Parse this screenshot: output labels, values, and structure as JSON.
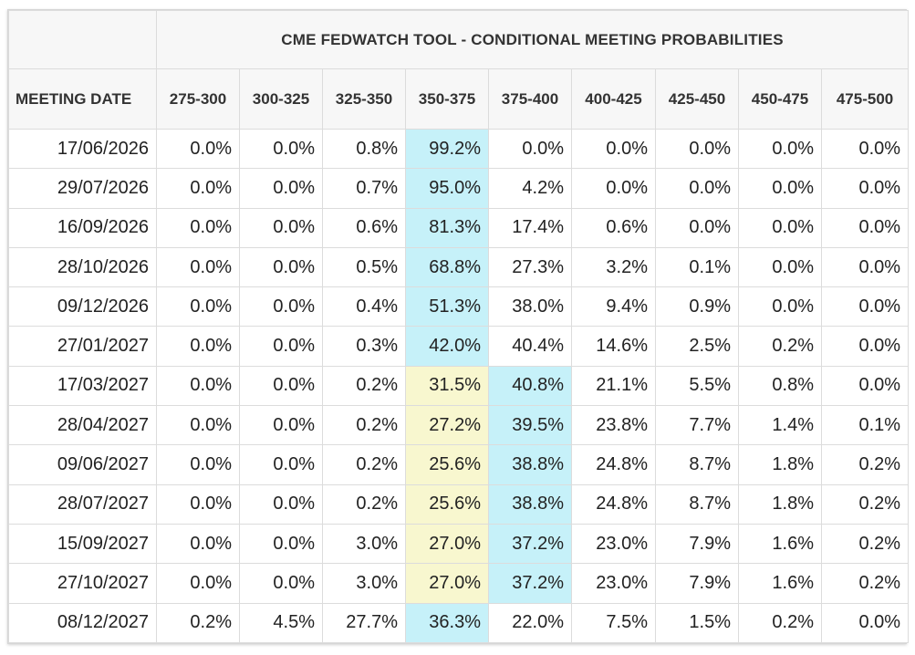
{
  "title": "CME FEDWATCH TOOL - CONDITIONAL MEETING PROBABILITIES",
  "date_header": "MEETING DATE",
  "columns": [
    "275-300",
    "300-325",
    "325-350",
    "350-375",
    "375-400",
    "400-425",
    "425-450",
    "450-475",
    "475-500"
  ],
  "colors": {
    "highlight_max": "#c6f1f9",
    "highlight_secondary": "#f8f7cf"
  },
  "rows": [
    {
      "date": "17/06/2026",
      "values": [
        "0.0%",
        "0.0%",
        "0.8%",
        "99.2%",
        "0.0%",
        "0.0%",
        "0.0%",
        "0.0%",
        "0.0%"
      ],
      "highlights": {
        "3": "blue"
      }
    },
    {
      "date": "29/07/2026",
      "values": [
        "0.0%",
        "0.0%",
        "0.7%",
        "95.0%",
        "4.2%",
        "0.0%",
        "0.0%",
        "0.0%",
        "0.0%"
      ],
      "highlights": {
        "3": "blue"
      }
    },
    {
      "date": "16/09/2026",
      "values": [
        "0.0%",
        "0.0%",
        "0.6%",
        "81.3%",
        "17.4%",
        "0.6%",
        "0.0%",
        "0.0%",
        "0.0%"
      ],
      "highlights": {
        "3": "blue"
      }
    },
    {
      "date": "28/10/2026",
      "values": [
        "0.0%",
        "0.0%",
        "0.5%",
        "68.8%",
        "27.3%",
        "3.2%",
        "0.1%",
        "0.0%",
        "0.0%"
      ],
      "highlights": {
        "3": "blue"
      }
    },
    {
      "date": "09/12/2026",
      "values": [
        "0.0%",
        "0.0%",
        "0.4%",
        "51.3%",
        "38.0%",
        "9.4%",
        "0.9%",
        "0.0%",
        "0.0%"
      ],
      "highlights": {
        "3": "blue"
      }
    },
    {
      "date": "27/01/2027",
      "values": [
        "0.0%",
        "0.0%",
        "0.3%",
        "42.0%",
        "40.4%",
        "14.6%",
        "2.5%",
        "0.2%",
        "0.0%"
      ],
      "highlights": {
        "3": "blue"
      }
    },
    {
      "date": "17/03/2027",
      "values": [
        "0.0%",
        "0.0%",
        "0.2%",
        "31.5%",
        "40.8%",
        "21.1%",
        "5.5%",
        "0.8%",
        "0.0%"
      ],
      "highlights": {
        "3": "yellow",
        "4": "blue"
      }
    },
    {
      "date": "28/04/2027",
      "values": [
        "0.0%",
        "0.0%",
        "0.2%",
        "27.2%",
        "39.5%",
        "23.8%",
        "7.7%",
        "1.4%",
        "0.1%"
      ],
      "highlights": {
        "3": "yellow",
        "4": "blue"
      }
    },
    {
      "date": "09/06/2027",
      "values": [
        "0.0%",
        "0.0%",
        "0.2%",
        "25.6%",
        "38.8%",
        "24.8%",
        "8.7%",
        "1.8%",
        "0.2%"
      ],
      "highlights": {
        "3": "yellow",
        "4": "blue"
      }
    },
    {
      "date": "28/07/2027",
      "values": [
        "0.0%",
        "0.0%",
        "0.2%",
        "25.6%",
        "38.8%",
        "24.8%",
        "8.7%",
        "1.8%",
        "0.2%"
      ],
      "highlights": {
        "3": "yellow",
        "4": "blue"
      }
    },
    {
      "date": "15/09/2027",
      "values": [
        "0.0%",
        "0.0%",
        "3.0%",
        "27.0%",
        "37.2%",
        "23.0%",
        "7.9%",
        "1.6%",
        "0.2%"
      ],
      "highlights": {
        "3": "yellow",
        "4": "blue"
      }
    },
    {
      "date": "27/10/2027",
      "values": [
        "0.0%",
        "0.0%",
        "3.0%",
        "27.0%",
        "37.2%",
        "23.0%",
        "7.9%",
        "1.6%",
        "0.2%"
      ],
      "highlights": {
        "3": "yellow",
        "4": "blue"
      }
    },
    {
      "date": "08/12/2027",
      "values": [
        "0.2%",
        "4.5%",
        "27.7%",
        "36.3%",
        "22.0%",
        "7.5%",
        "1.5%",
        "0.2%",
        "0.0%"
      ],
      "highlights": {
        "3": "blue"
      }
    }
  ]
}
